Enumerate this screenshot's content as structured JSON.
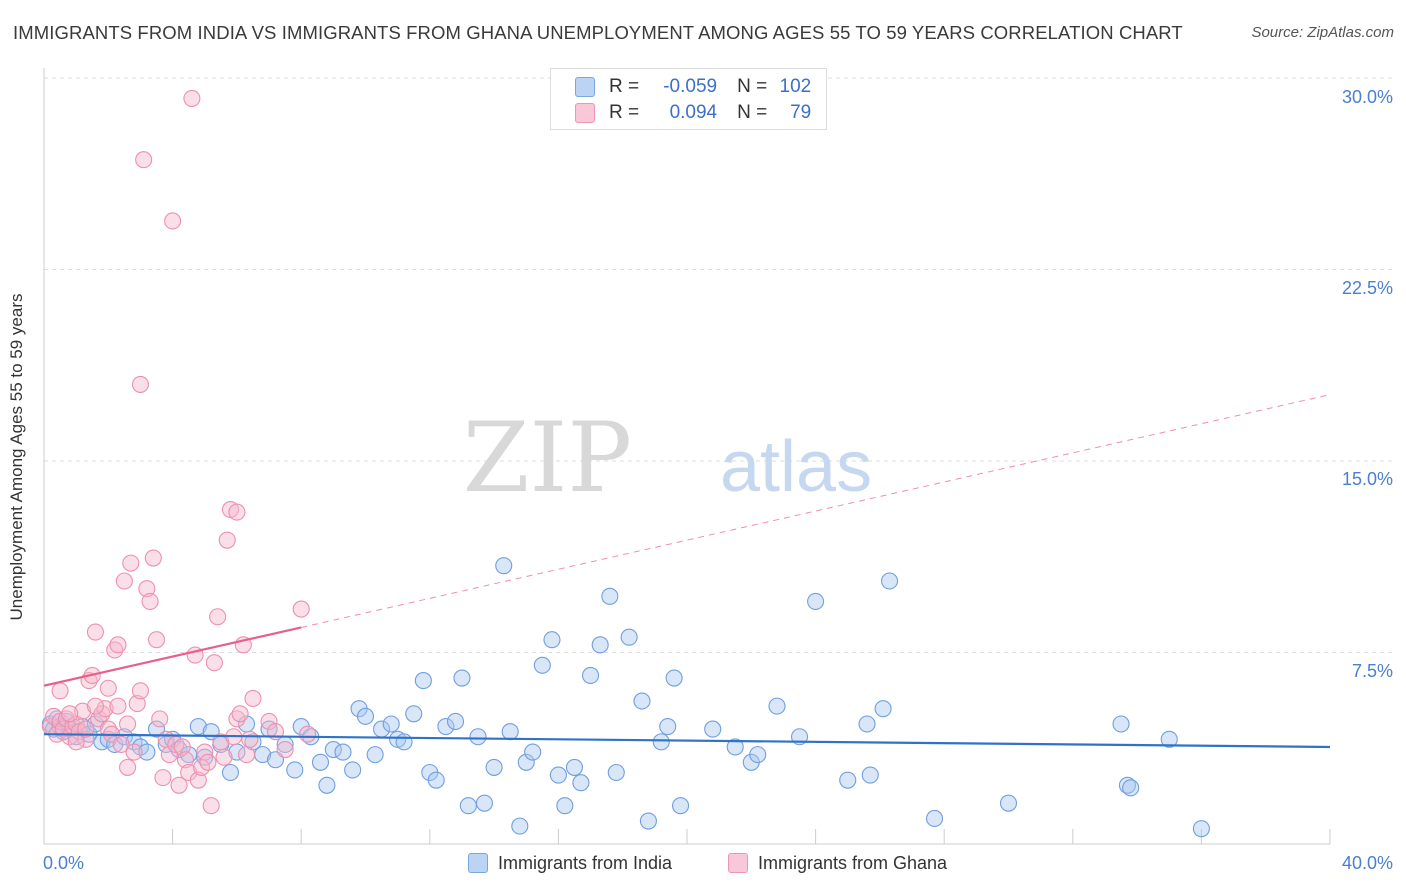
{
  "chart_data": {
    "type": "scatter",
    "title": "IMMIGRANTS FROM INDIA VS IMMIGRANTS FROM GHANA UNEMPLOYMENT AMONG AGES 55 TO 59 YEARS CORRELATION CHART",
    "source": "Source: ZipAtlas.com",
    "xlabel": "",
    "ylabel": "Unemployment Among Ages 55 to 59 years",
    "xlim": [
      0,
      40
    ],
    "ylim": [
      0,
      30
    ],
    "x_tick_labels": [
      "0.0%",
      "40.0%"
    ],
    "y_tick_labels": [
      "7.5%",
      "15.0%",
      "22.5%",
      "30.0%"
    ],
    "y_ticks": [
      7.5,
      15.0,
      22.5,
      30.0
    ],
    "watermark": {
      "zip": "ZIP",
      "atlas": "atlas"
    },
    "stats": [
      {
        "r_label": "R =",
        "r_value": "-0.059",
        "n_label": "N =",
        "n_value": "102"
      },
      {
        "r_label": "R =",
        "r_value": "0.094",
        "n_label": "N =",
        "n_value": "79"
      }
    ],
    "series": [
      {
        "name": "Immigrants from India",
        "color": "#a9c8f0",
        "stroke": "#6f9fe0",
        "trend_color": "#2f72c8",
        "trend": {
          "x0": 0,
          "y0": 4.3,
          "x1": 40,
          "y1": 3.8
        },
        "points": [
          [
            0.2,
            4.7
          ],
          [
            0.3,
            4.5
          ],
          [
            0.4,
            4.9
          ],
          [
            0.5,
            4.6
          ],
          [
            0.6,
            4.4
          ],
          [
            0.7,
            4.8
          ],
          [
            0.8,
            4.5
          ],
          [
            1.0,
            4.2
          ],
          [
            1.2,
            4.6
          ],
          [
            1.4,
            4.3
          ],
          [
            1.6,
            4.7
          ],
          [
            1.8,
            4.0
          ],
          [
            2.0,
            4.1
          ],
          [
            2.2,
            3.9
          ],
          [
            2.5,
            4.2
          ],
          [
            2.8,
            4.0
          ],
          [
            3.0,
            3.8
          ],
          [
            3.2,
            3.6
          ],
          [
            3.5,
            4.5
          ],
          [
            3.8,
            3.9
          ],
          [
            4.0,
            4.1
          ],
          [
            4.2,
            3.7
          ],
          [
            4.5,
            3.5
          ],
          [
            4.8,
            4.6
          ],
          [
            5.0,
            3.4
          ],
          [
            5.2,
            4.4
          ],
          [
            5.5,
            3.9
          ],
          [
            5.8,
            2.8
          ],
          [
            6.0,
            3.6
          ],
          [
            6.3,
            4.7
          ],
          [
            6.5,
            4.0
          ],
          [
            6.8,
            3.5
          ],
          [
            7.0,
            4.5
          ],
          [
            7.2,
            3.3
          ],
          [
            7.5,
            3.9
          ],
          [
            7.8,
            2.9
          ],
          [
            8.0,
            4.6
          ],
          [
            8.3,
            4.2
          ],
          [
            8.6,
            3.2
          ],
          [
            8.8,
            2.3
          ],
          [
            9.0,
            3.7
          ],
          [
            9.3,
            3.6
          ],
          [
            9.6,
            2.9
          ],
          [
            9.8,
            5.3
          ],
          [
            10.0,
            5.0
          ],
          [
            10.3,
            3.5
          ],
          [
            10.5,
            4.5
          ],
          [
            10.8,
            4.7
          ],
          [
            11.0,
            4.1
          ],
          [
            11.2,
            4.0
          ],
          [
            11.5,
            5.1
          ],
          [
            11.8,
            6.4
          ],
          [
            12.0,
            2.8
          ],
          [
            12.2,
            2.5
          ],
          [
            12.5,
            4.6
          ],
          [
            12.8,
            4.8
          ],
          [
            13.0,
            6.5
          ],
          [
            13.2,
            1.5
          ],
          [
            13.5,
            4.2
          ],
          [
            13.7,
            1.6
          ],
          [
            14.0,
            3.0
          ],
          [
            14.3,
            10.9
          ],
          [
            14.5,
            4.4
          ],
          [
            14.8,
            0.7
          ],
          [
            15.0,
            3.2
          ],
          [
            15.2,
            3.6
          ],
          [
            15.5,
            7.0
          ],
          [
            15.8,
            8.0
          ],
          [
            16.0,
            2.7
          ],
          [
            16.2,
            1.5
          ],
          [
            16.5,
            3.0
          ],
          [
            16.7,
            2.4
          ],
          [
            17.0,
            6.6
          ],
          [
            17.3,
            7.8
          ],
          [
            17.6,
            9.7
          ],
          [
            17.8,
            2.8
          ],
          [
            18.2,
            8.1
          ],
          [
            18.6,
            5.6
          ],
          [
            18.8,
            0.9
          ],
          [
            19.2,
            4.0
          ],
          [
            19.4,
            4.6
          ],
          [
            19.6,
            6.5
          ],
          [
            19.8,
            1.5
          ],
          [
            20.8,
            4.5
          ],
          [
            21.5,
            3.8
          ],
          [
            22.0,
            3.2
          ],
          [
            22.2,
            3.5
          ],
          [
            22.8,
            5.4
          ],
          [
            23.5,
            4.2
          ],
          [
            24.0,
            9.5
          ],
          [
            25.0,
            2.5
          ],
          [
            25.6,
            4.7
          ],
          [
            25.7,
            2.7
          ],
          [
            26.1,
            5.3
          ],
          [
            26.3,
            10.3
          ],
          [
            27.7,
            1.0
          ],
          [
            30.0,
            1.6
          ],
          [
            33.5,
            4.7
          ],
          [
            33.7,
            2.3
          ],
          [
            33.8,
            2.2
          ],
          [
            35.0,
            4.1
          ],
          [
            36.0,
            0.6
          ]
        ]
      },
      {
        "name": "Immigrants from Ghana",
        "color": "#f7b8cc",
        "stroke": "#ee8fae",
        "trend_color": "#e8608a",
        "trend": {
          "x0": 0,
          "y0": 6.2,
          "x1": 40,
          "y1": 17.6
        },
        "trend_solid_until": 8,
        "points": [
          [
            0.2,
            4.6
          ],
          [
            0.3,
            5.0
          ],
          [
            0.4,
            4.3
          ],
          [
            0.5,
            4.8
          ],
          [
            0.6,
            4.5
          ],
          [
            0.7,
            4.9
          ],
          [
            0.8,
            4.2
          ],
          [
            0.9,
            4.6
          ],
          [
            1.0,
            4.7
          ],
          [
            1.1,
            4.4
          ],
          [
            1.2,
            5.2
          ],
          [
            1.3,
            4.1
          ],
          [
            1.4,
            6.4
          ],
          [
            1.5,
            6.6
          ],
          [
            1.6,
            8.3
          ],
          [
            1.7,
            4.9
          ],
          [
            1.8,
            5.1
          ],
          [
            1.9,
            5.3
          ],
          [
            2.0,
            4.5
          ],
          [
            2.1,
            4.3
          ],
          [
            2.2,
            7.6
          ],
          [
            2.3,
            7.8
          ],
          [
            2.4,
            3.9
          ],
          [
            2.5,
            10.3
          ],
          [
            2.6,
            3.0
          ],
          [
            2.7,
            11.0
          ],
          [
            2.8,
            3.6
          ],
          [
            2.9,
            5.5
          ],
          [
            3.0,
            6.0
          ],
          [
            3.0,
            18.0
          ],
          [
            3.1,
            26.8
          ],
          [
            3.2,
            10.0
          ],
          [
            3.3,
            9.5
          ],
          [
            3.4,
            11.2
          ],
          [
            3.5,
            8.0
          ],
          [
            3.6,
            4.9
          ],
          [
            3.7,
            2.6
          ],
          [
            3.8,
            4.1
          ],
          [
            3.9,
            3.5
          ],
          [
            4.0,
            24.4
          ],
          [
            4.1,
            3.9
          ],
          [
            4.2,
            2.3
          ],
          [
            4.3,
            3.8
          ],
          [
            4.4,
            3.3
          ],
          [
            4.5,
            2.8
          ],
          [
            4.6,
            29.2
          ],
          [
            4.7,
            7.4
          ],
          [
            4.8,
            2.5
          ],
          [
            4.9,
            3.0
          ],
          [
            5.0,
            3.6
          ],
          [
            5.1,
            3.2
          ],
          [
            5.2,
            1.5
          ],
          [
            5.3,
            7.1
          ],
          [
            5.4,
            8.9
          ],
          [
            5.5,
            4.0
          ],
          [
            5.6,
            3.4
          ],
          [
            5.7,
            11.9
          ],
          [
            5.8,
            13.1
          ],
          [
            5.9,
            4.2
          ],
          [
            6.0,
            4.9
          ],
          [
            6.1,
            5.1
          ],
          [
            6.2,
            7.8
          ],
          [
            6.3,
            3.5
          ],
          [
            6.4,
            4.1
          ],
          [
            6.5,
            5.7
          ],
          [
            7.0,
            4.8
          ],
          [
            7.2,
            4.4
          ],
          [
            7.5,
            3.7
          ],
          [
            8.0,
            9.2
          ],
          [
            0.5,
            6.0
          ],
          [
            0.8,
            5.1
          ],
          [
            1.0,
            4.0
          ],
          [
            1.3,
            4.5
          ],
          [
            1.6,
            5.4
          ],
          [
            2.0,
            6.1
          ],
          [
            2.3,
            5.4
          ],
          [
            2.6,
            4.7
          ],
          [
            6.0,
            13.0
          ],
          [
            8.2,
            4.3
          ]
        ]
      }
    ]
  },
  "legend": {
    "items": [
      {
        "label": "Immigrants from India"
      },
      {
        "label": "Immigrants from Ghana"
      }
    ]
  }
}
